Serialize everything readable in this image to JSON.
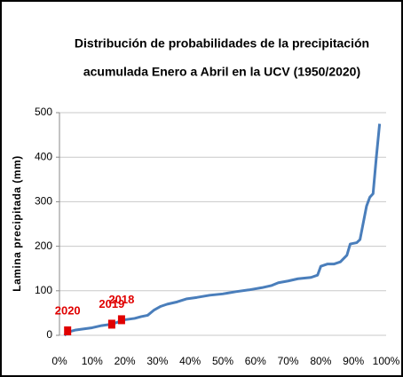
{
  "chart_data": {
    "type": "line",
    "title": [
      "Distribución de probabilidades de la precipitación",
      "acumulada Enero a Abril en la UCV (1950/2020)"
    ],
    "y_label": "Lamina precipitada (mm)",
    "xlim": [
      0,
      100
    ],
    "xticks": [
      {
        "value": 0,
        "label": "0%"
      },
      {
        "value": 10,
        "label": "10%"
      },
      {
        "value": 20,
        "label": "20%"
      },
      {
        "value": 30,
        "label": "30%"
      },
      {
        "value": 40,
        "label": "40%"
      },
      {
        "value": 50,
        "label": "50%"
      },
      {
        "value": 60,
        "label": "60%"
      },
      {
        "value": 70,
        "label": "70%"
      },
      {
        "value": 80,
        "label": "80%"
      },
      {
        "value": 90,
        "label": "90%"
      },
      {
        "value": 100,
        "label": "100%"
      }
    ],
    "ylim": [
      0,
      500
    ],
    "yticks": [
      0,
      100,
      200,
      300,
      400,
      500
    ],
    "grid": true,
    "series": [
      {
        "color": "#4a7ebb",
        "x": [
          1.5,
          3,
          5,
          8,
          10,
          13,
          16,
          18,
          20,
          23,
          25,
          27,
          29,
          31,
          33,
          36,
          39,
          42,
          46,
          50,
          54,
          58,
          62,
          65,
          67,
          70,
          73,
          77,
          79,
          80,
          82,
          84,
          86,
          88,
          89,
          91,
          92,
          94,
          95,
          96,
          97,
          98
        ],
        "values": [
          0,
          8,
          12,
          15,
          17,
          22,
          25,
          30,
          35,
          38,
          42,
          45,
          57,
          65,
          70,
          75,
          82,
          85,
          90,
          93,
          98,
          102,
          107,
          112,
          118,
          122,
          127,
          130,
          135,
          155,
          160,
          160,
          165,
          180,
          205,
          208,
          215,
          290,
          310,
          318,
          400,
          475
        ]
      }
    ],
    "annotations": [
      {
        "label": "2020",
        "x": 2.5,
        "y": 10,
        "color": "#e00000"
      },
      {
        "label": "2019",
        "x": 16,
        "y": 25,
        "color": "#e00000"
      },
      {
        "label": "2018",
        "x": 19,
        "y": 35,
        "color": "#e00000"
      }
    ]
  }
}
